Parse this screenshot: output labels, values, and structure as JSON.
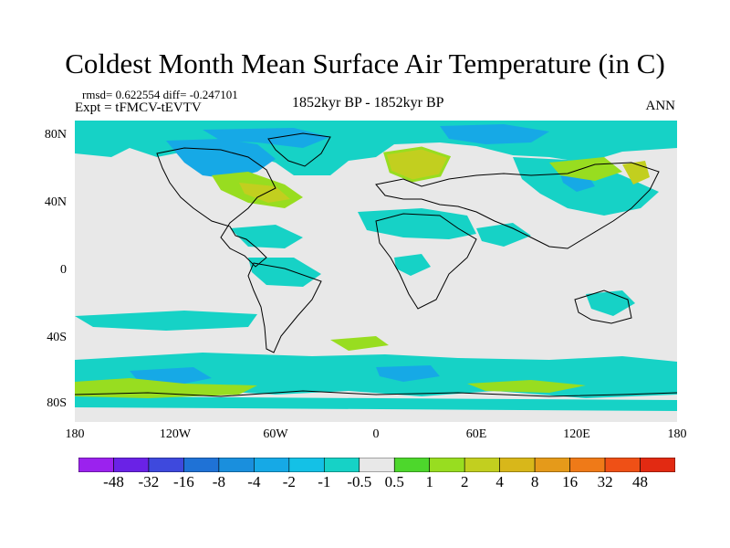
{
  "title": "Coldest Month Mean Surface Air Temperature (in C)",
  "stats": "rmsd= 0.622554 diff= -0.247101",
  "experiment": "Expt = tFMCV-tEVTV",
  "period": "1852kyr BP - 1852kyr BP",
  "season": "ANN",
  "map": {
    "lat_labels": [
      "80N",
      "40N",
      "0",
      "40S",
      "80S"
    ],
    "lon_labels": [
      "180",
      "120W",
      "60W",
      "0",
      "60E",
      "120E",
      "180"
    ],
    "background_color": "#e8e8e8"
  },
  "colorbar": {
    "colors": [
      "#9b22ee",
      "#6a22e6",
      "#3e49dd",
      "#1f72d6",
      "#1a8fdd",
      "#16a9e6",
      "#14c1e6",
      "#16d2c6",
      "#e8e8e8",
      "#4dd72c",
      "#98dd20",
      "#c2cf1f",
      "#d8b71a",
      "#e59a1a",
      "#ef7a18",
      "#ef5016",
      "#e22a12"
    ],
    "labels": [
      "-48",
      "-32",
      "-16",
      "-8",
      "-4",
      "-2",
      "-1",
      "-0.5",
      "0.5",
      "1",
      "2",
      "4",
      "8",
      "16",
      "32",
      "48"
    ]
  }
}
